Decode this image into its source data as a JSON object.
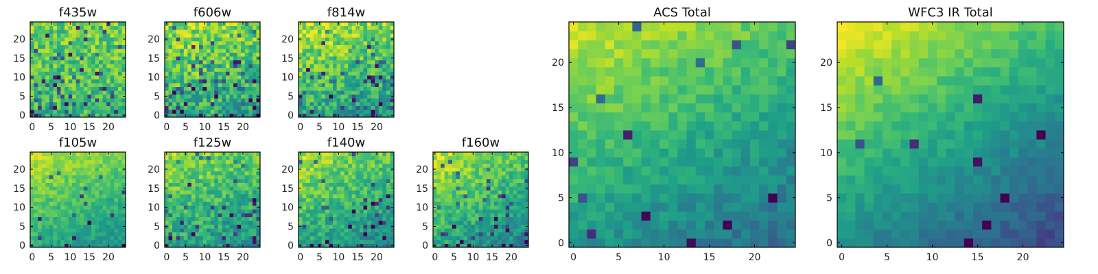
{
  "chart_data": [
    {
      "type": "heatmap",
      "title": "f435w",
      "grid_size": 25,
      "xticks": [
        0,
        5,
        10,
        15,
        20
      ],
      "yticks": [
        0,
        5,
        10,
        15,
        20
      ],
      "xlim": [
        0,
        24
      ],
      "ylim": [
        0,
        24
      ],
      "colormap": "viridis",
      "value_range": [
        0,
        1
      ],
      "seed": 11,
      "trend": {
        "base": 0.66,
        "gx": 0.0,
        "gy": 0.005,
        "noise": 0.35,
        "dark": 0.13
      }
    },
    {
      "type": "heatmap",
      "title": "f606w",
      "grid_size": 25,
      "xticks": [
        0,
        5,
        10,
        15,
        20
      ],
      "yticks": [
        0,
        5,
        10,
        15,
        20
      ],
      "xlim": [
        0,
        24
      ],
      "ylim": [
        0,
        24
      ],
      "colormap": "viridis",
      "value_range": [
        0,
        1
      ],
      "seed": 23,
      "trend": {
        "base": 0.62,
        "gx": -0.002,
        "gy": 0.01,
        "noise": 0.38,
        "dark": 0.12
      }
    },
    {
      "type": "heatmap",
      "title": "f814w",
      "grid_size": 25,
      "xticks": [
        0,
        5,
        10,
        15,
        20
      ],
      "yticks": [
        0,
        5,
        10,
        15,
        20
      ],
      "xlim": [
        0,
        24
      ],
      "ylim": [
        0,
        24
      ],
      "colormap": "viridis",
      "value_range": [
        0,
        1
      ],
      "seed": 37,
      "trend": {
        "base": 0.6,
        "gx": -0.004,
        "gy": 0.013,
        "noise": 0.36,
        "dark": 0.1
      }
    },
    {
      "type": "heatmap",
      "title": "f105w",
      "grid_size": 25,
      "xticks": [
        0,
        5,
        10,
        15,
        20
      ],
      "yticks": [
        0,
        5,
        10,
        15,
        20
      ],
      "xlim": [
        0,
        24
      ],
      "ylim": [
        0,
        24
      ],
      "colormap": "viridis",
      "value_range": [
        0,
        1
      ],
      "seed": 41,
      "trend": {
        "base": 0.62,
        "gx": -0.005,
        "gy": 0.012,
        "noise": 0.18,
        "dark": 0.04
      }
    },
    {
      "type": "heatmap",
      "title": "f125w",
      "grid_size": 25,
      "xticks": [
        0,
        5,
        10,
        15,
        20
      ],
      "yticks": [
        0,
        5,
        10,
        15,
        20
      ],
      "xlim": [
        0,
        24
      ],
      "ylim": [
        0,
        24
      ],
      "colormap": "viridis",
      "value_range": [
        0,
        1
      ],
      "seed": 53,
      "trend": {
        "base": 0.6,
        "gx": -0.004,
        "gy": 0.01,
        "noise": 0.3,
        "dark": 0.09
      }
    },
    {
      "type": "heatmap",
      "title": "f140w",
      "grid_size": 25,
      "xticks": [
        0,
        5,
        10,
        15,
        20
      ],
      "yticks": [
        0,
        5,
        10,
        15,
        20
      ],
      "xlim": [
        0,
        24
      ],
      "ylim": [
        0,
        24
      ],
      "colormap": "viridis",
      "value_range": [
        0,
        1
      ],
      "seed": 67,
      "trend": {
        "base": 0.6,
        "gx": -0.006,
        "gy": 0.012,
        "noise": 0.26,
        "dark": 0.07
      }
    },
    {
      "type": "heatmap",
      "title": "f160w",
      "grid_size": 25,
      "xticks": [
        0,
        5,
        10,
        15,
        20
      ],
      "yticks": [
        0,
        5,
        10,
        15,
        20
      ],
      "xlim": [
        0,
        24
      ],
      "ylim": [
        0,
        24
      ],
      "colormap": "viridis",
      "value_range": [
        0,
        1
      ],
      "seed": 79,
      "trend": {
        "base": 0.6,
        "gx": -0.007,
        "gy": 0.013,
        "noise": 0.26,
        "dark": 0.08
      }
    },
    {
      "type": "heatmap",
      "title": "ACS Total",
      "grid_size": 25,
      "xticks": [
        0,
        5,
        10,
        15,
        20
      ],
      "yticks": [
        0,
        5,
        10,
        15,
        20
      ],
      "xlim": [
        0,
        24
      ],
      "ylim": [
        0,
        24
      ],
      "colormap": "viridis",
      "value_range": [
        0,
        1
      ],
      "seed": 97,
      "trend": {
        "base": 0.54,
        "gx": -0.008,
        "gy": 0.016,
        "noise": 0.16,
        "dark": 0.035
      }
    },
    {
      "type": "heatmap",
      "title": "WFC3 IR Total",
      "grid_size": 25,
      "xticks": [
        0,
        5,
        10,
        15,
        20
      ],
      "yticks": [
        0,
        5,
        10,
        15,
        20
      ],
      "xlim": [
        0,
        24
      ],
      "ylim": [
        0,
        24
      ],
      "colormap": "viridis",
      "value_range": [
        0,
        1
      ],
      "seed": 131,
      "trend": {
        "base": 0.5,
        "gx": -0.012,
        "gy": 0.02,
        "noise": 0.12,
        "dark": 0.03
      }
    }
  ]
}
